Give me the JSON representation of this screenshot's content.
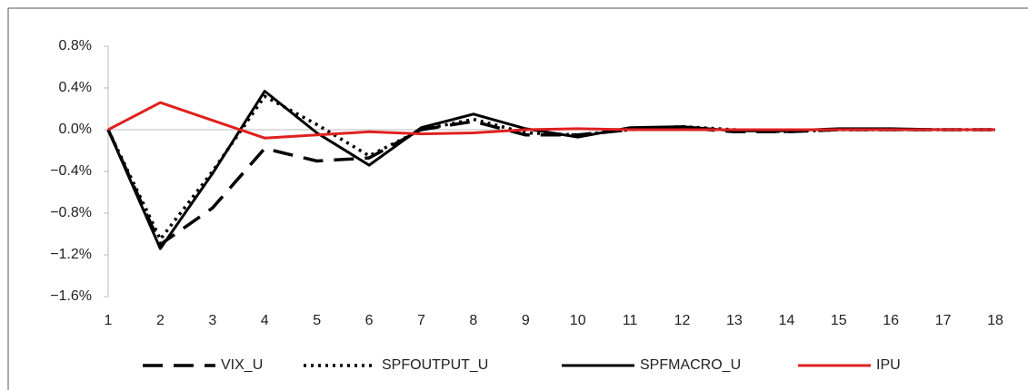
{
  "chart_data": {
    "type": "line",
    "x": [
      1,
      2,
      3,
      4,
      5,
      6,
      7,
      8,
      9,
      10,
      11,
      12,
      13,
      14,
      15,
      16,
      17,
      18
    ],
    "xlim": [
      1,
      18
    ],
    "xticks": [
      1,
      2,
      3,
      4,
      5,
      6,
      7,
      8,
      9,
      10,
      11,
      12,
      13,
      14,
      15,
      16,
      17,
      18
    ],
    "ylim": [
      -1.6,
      0.8
    ],
    "yticks": [
      {
        "value": -1.6,
        "label": "−1.6%"
      },
      {
        "value": -1.2,
        "label": "−1.2%"
      },
      {
        "value": -0.8,
        "label": "−0.8%"
      },
      {
        "value": -0.4,
        "label": "−0.4%"
      },
      {
        "value": 0,
        "label": "0.0%"
      },
      {
        "value": 0.4,
        "label": "0.4%"
      },
      {
        "value": 0.8,
        "label": "0.8%"
      }
    ],
    "legend": "bottom",
    "series": [
      {
        "name": "VIX_U",
        "color": "#000000",
        "dash": "dashed",
        "values": [
          0,
          -1.1,
          -0.75,
          -0.18,
          -0.3,
          -0.27,
          0.0,
          0.08,
          -0.05,
          -0.05,
          0.0,
          0.02,
          -0.02,
          -0.02,
          0.0,
          0.0,
          0.0,
          0.0
        ]
      },
      {
        "name": "SPFOUTPUT_U",
        "color": "#000000",
        "dash": "dotted",
        "values": [
          0,
          -1.05,
          -0.4,
          0.32,
          0.05,
          -0.25,
          0.0,
          0.1,
          -0.03,
          -0.05,
          0.0,
          0.03,
          0.0,
          -0.02,
          0.0,
          0.0,
          0.0,
          0.0
        ]
      },
      {
        "name": "SPFMACRO_U",
        "color": "#000000",
        "dash": "solid",
        "values": [
          0,
          -1.14,
          -0.42,
          0.37,
          -0.03,
          -0.34,
          0.02,
          0.15,
          0.01,
          -0.07,
          0.02,
          0.03,
          -0.01,
          -0.01,
          0.01,
          0.01,
          0.0,
          0.0
        ]
      },
      {
        "name": "IPU",
        "color": "#e02020",
        "dash": "solid",
        "values": [
          0,
          0.26,
          0.09,
          -0.08,
          -0.05,
          -0.02,
          -0.04,
          -0.03,
          0.0,
          0.01,
          0.0,
          0.0,
          0.0,
          0.0,
          0.0,
          0.0,
          0.0,
          0.0
        ]
      }
    ]
  }
}
